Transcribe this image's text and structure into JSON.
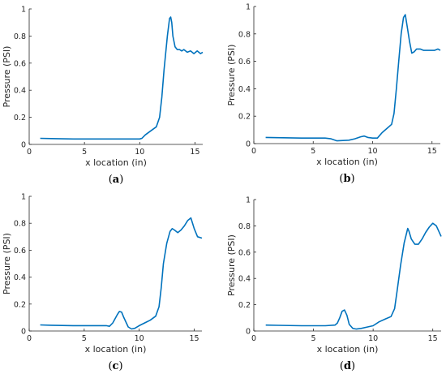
{
  "chart_data": [
    {
      "type": "line",
      "caption": "(a)",
      "caption_letter": "a",
      "xlabel": "x location (in)",
      "ylabel": "Pressure (PSI)",
      "xlim": [
        0,
        15.7
      ],
      "ylim": [
        0,
        1
      ],
      "xticks": [
        "0",
        "5",
        "10",
        "15"
      ],
      "yticks": [
        "0",
        "0.2",
        "0.4",
        "0.6",
        "0.8",
        "1"
      ],
      "line_color": "#0072BD",
      "series": [
        {
          "x": [
            1,
            2,
            4,
            6,
            8,
            10,
            10.2,
            10.5,
            11,
            11.5,
            11.8,
            12.0,
            12.2,
            12.5,
            12.7,
            12.8,
            12.9,
            13.0,
            13.2,
            13.4,
            13.6,
            13.8,
            14.0,
            14.3,
            14.6,
            14.9,
            15.2,
            15.5,
            15.7
          ],
          "y": [
            0.045,
            0.043,
            0.04,
            0.04,
            0.04,
            0.04,
            0.045,
            0.07,
            0.1,
            0.13,
            0.2,
            0.35,
            0.55,
            0.8,
            0.93,
            0.94,
            0.9,
            0.8,
            0.72,
            0.7,
            0.7,
            0.69,
            0.7,
            0.68,
            0.69,
            0.67,
            0.69,
            0.67,
            0.68
          ]
        }
      ]
    },
    {
      "type": "line",
      "caption": "(b)",
      "caption_letter": "b",
      "xlabel": "x location (in)",
      "ylabel": "Pressure (PSI)",
      "xlim": [
        0,
        15.7
      ],
      "ylim": [
        0,
        1
      ],
      "xticks": [
        "0",
        "5",
        "10",
        "15"
      ],
      "yticks": [
        "0",
        "0.2",
        "0.4",
        "0.6",
        "0.8",
        "1"
      ],
      "line_color": "#0072BD",
      "series": [
        {
          "x": [
            1,
            2,
            4,
            6,
            6.5,
            7,
            8,
            8.5,
            9,
            9.3,
            9.6,
            10,
            10.4,
            10.8,
            11.2,
            11.6,
            11.8,
            12.0,
            12.2,
            12.4,
            12.6,
            12.75,
            12.9,
            13.1,
            13.3,
            13.5,
            13.7,
            14.0,
            14.3,
            14.6,
            14.9,
            15.2,
            15.5,
            15.7
          ],
          "y": [
            0.045,
            0.043,
            0.04,
            0.04,
            0.035,
            0.02,
            0.025,
            0.035,
            0.05,
            0.055,
            0.045,
            0.04,
            0.04,
            0.08,
            0.11,
            0.14,
            0.22,
            0.4,
            0.6,
            0.8,
            0.92,
            0.94,
            0.86,
            0.75,
            0.66,
            0.67,
            0.69,
            0.69,
            0.68,
            0.68,
            0.68,
            0.68,
            0.69,
            0.68
          ]
        }
      ]
    },
    {
      "type": "line",
      "caption": "(c)",
      "caption_letter": "c",
      "xlabel": "x location (in)",
      "ylabel": "Pressure (PSI)",
      "xlim": [
        0,
        15.7
      ],
      "ylim": [
        0,
        1
      ],
      "xticks": [
        "0",
        "5",
        "10",
        "15"
      ],
      "yticks": [
        "0",
        "0.2",
        "0.4",
        "0.6",
        "0.8",
        "1"
      ],
      "line_color": "#0072BD",
      "series": [
        {
          "x": [
            1,
            2,
            4,
            6,
            7,
            7.3,
            7.6,
            8.0,
            8.2,
            8.4,
            8.6,
            9,
            9.3,
            9.6,
            10,
            10.5,
            11,
            11.5,
            11.8,
            12.0,
            12.2,
            12.5,
            12.8,
            13.0,
            13.2,
            13.5,
            13.8,
            14.1,
            14.4,
            14.7,
            15.0,
            15.3,
            15.7
          ],
          "y": [
            0.045,
            0.043,
            0.04,
            0.04,
            0.04,
            0.035,
            0.06,
            0.12,
            0.145,
            0.14,
            0.1,
            0.03,
            0.015,
            0.02,
            0.04,
            0.06,
            0.08,
            0.11,
            0.18,
            0.32,
            0.5,
            0.65,
            0.74,
            0.76,
            0.75,
            0.73,
            0.75,
            0.78,
            0.82,
            0.84,
            0.76,
            0.7,
            0.69
          ]
        }
      ]
    },
    {
      "type": "line",
      "caption": "(d)",
      "caption_letter": "d",
      "xlabel": "x location (in)",
      "ylabel": "Pressure (PSI)",
      "xlim": [
        0,
        15.7
      ],
      "ylim": [
        0,
        1
      ],
      "xticks": [
        "0",
        "5",
        "10",
        "15"
      ],
      "yticks": [
        "0",
        "0.2",
        "0.4",
        "0.6",
        "0.8",
        "1"
      ],
      "line_color": "#0072BD",
      "series": [
        {
          "x": [
            1,
            2,
            4,
            6,
            6.8,
            7.0,
            7.2,
            7.4,
            7.6,
            7.8,
            8.0,
            8.3,
            8.6,
            9,
            9.5,
            10,
            10.5,
            11,
            11.5,
            11.8,
            12.0,
            12.3,
            12.6,
            12.9,
            13.0,
            13.2,
            13.5,
            13.8,
            14.1,
            14.4,
            14.7,
            15.0,
            15.3,
            15.7
          ],
          "y": [
            0.045,
            0.043,
            0.04,
            0.04,
            0.045,
            0.06,
            0.1,
            0.15,
            0.16,
            0.12,
            0.05,
            0.02,
            0.015,
            0.02,
            0.03,
            0.04,
            0.07,
            0.09,
            0.11,
            0.17,
            0.3,
            0.5,
            0.67,
            0.78,
            0.76,
            0.7,
            0.66,
            0.66,
            0.7,
            0.75,
            0.79,
            0.82,
            0.8,
            0.72
          ]
        }
      ]
    }
  ]
}
